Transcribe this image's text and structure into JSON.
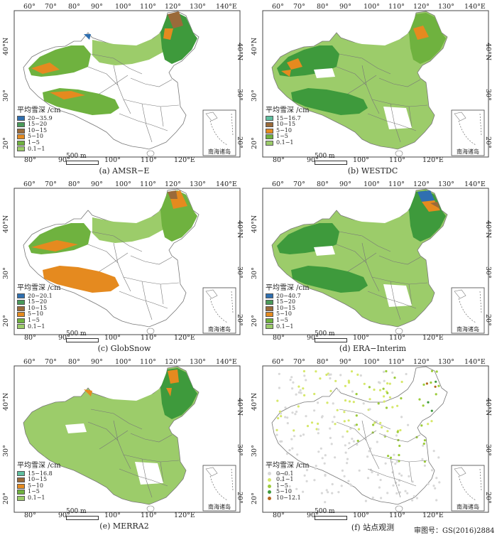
{
  "colors": {
    "c_0": "#9ccc6a",
    "c_1": "#6fb23f",
    "c_5": "#3e9a3c",
    "c_10": "#e58a1f",
    "c_15": "#9a6a3a",
    "c_20": "#2f6fb0",
    "c_15w": "#5fbfa0",
    "border": "#777777"
  },
  "panels": [
    {
      "id": "a",
      "caption": "(a) AMSR−E",
      "legend_title": "平均雪深 /cm",
      "legend": [
        {
          "label": "20−35.9",
          "color": "#2f6fb0"
        },
        {
          "label": "15−20",
          "color": "#4a9a5a"
        },
        {
          "label": "10−15",
          "color": "#9a6a3a"
        },
        {
          "label": "5−10",
          "color": "#e58a1f"
        },
        {
          "label": "1−5",
          "color": "#6fb23f"
        },
        {
          "label": "0.1−1",
          "color": "#9ccc6a"
        }
      ]
    },
    {
      "id": "b",
      "caption": "(b) WESTDC",
      "legend_title": "平均雪深 /cm",
      "legend": [
        {
          "label": "15−16.7",
          "color": "#5fbfa0"
        },
        {
          "label": "10−15",
          "color": "#9a6a3a"
        },
        {
          "label": "5−10",
          "color": "#e58a1f"
        },
        {
          "label": "1−5",
          "color": "#6fb23f"
        },
        {
          "label": "0.1−1",
          "color": "#9ccc6a"
        }
      ]
    },
    {
      "id": "c",
      "caption": "(c) GlobSnow",
      "legend_title": "平均雪深 /cm",
      "legend": [
        {
          "label": "20−20.1",
          "color": "#2f6fb0"
        },
        {
          "label": "15−20",
          "color": "#4a9a5a"
        },
        {
          "label": "10−15",
          "color": "#9a6a3a"
        },
        {
          "label": "5−10",
          "color": "#e58a1f"
        },
        {
          "label": "1−5",
          "color": "#6fb23f"
        },
        {
          "label": "0.1−1",
          "color": "#9ccc6a"
        }
      ]
    },
    {
      "id": "d",
      "caption": "(d) ERA−Interim",
      "legend_title": "平均雪深 /cm",
      "legend": [
        {
          "label": "20−40.7",
          "color": "#2f6fb0"
        },
        {
          "label": "15−20",
          "color": "#4a9a5a"
        },
        {
          "label": "10−15",
          "color": "#9a6a3a"
        },
        {
          "label": "5−10",
          "color": "#e58a1f"
        },
        {
          "label": "1−5",
          "color": "#6fb23f"
        },
        {
          "label": "0.1−1",
          "color": "#9ccc6a"
        }
      ]
    },
    {
      "id": "e",
      "caption": "(e) MERRA2",
      "legend_title": "平均雪深 /cm",
      "legend": [
        {
          "label": "15−16.8",
          "color": "#5fbfa0"
        },
        {
          "label": "10−15",
          "color": "#9a6a3a"
        },
        {
          "label": "5−10",
          "color": "#e58a1f"
        },
        {
          "label": "1−5",
          "color": "#6fb23f"
        },
        {
          "label": "0.1−1",
          "color": "#9ccc6a"
        }
      ]
    },
    {
      "id": "f",
      "caption": "(f) 站点观测",
      "legend_title": "平均雪深 /cm",
      "legend": [
        {
          "label": "0−0.1",
          "color": "#d8d8d8"
        },
        {
          "label": "0.1−1",
          "color": "#d6e86a"
        },
        {
          "label": "1−5",
          "color": "#9ccc3a"
        },
        {
          "label": "5−10",
          "color": "#3e9a3c"
        },
        {
          "label": "10−12.1",
          "color": "#b5651d"
        }
      ]
    }
  ],
  "scale_label": "500 m",
  "inset_label": "南海诸岛",
  "lon_top": [
    "60°",
    "70°",
    "80°",
    "90°",
    "100°",
    "110°",
    "120°",
    "130°",
    "140°E"
  ],
  "lon_bottom": [
    "80°",
    "90°",
    "100°",
    "110°",
    "120°E"
  ],
  "lat_left": [
    "40°N",
    "30°",
    "20°"
  ],
  "lat_right": [
    "40°N",
    "30°",
    "20°"
  ],
  "approval": "审图号：GS(2016)2884"
}
